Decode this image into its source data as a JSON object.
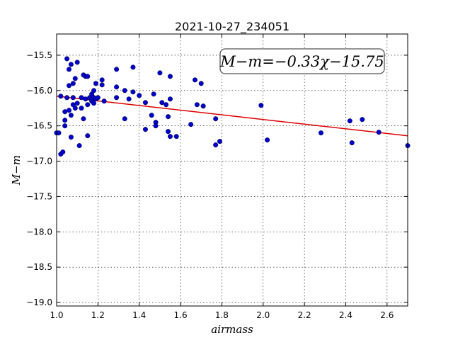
{
  "chart_data": {
    "type": "scatter",
    "title": "2021-10-27_234051",
    "xlabel": "airmass",
    "ylabel": "M−m",
    "xlim": [
      1.0,
      2.7
    ],
    "ylim": [
      -19.05,
      -15.2
    ],
    "x_ticks": [
      1.0,
      1.2,
      1.4,
      1.6,
      1.8,
      2.0,
      2.2,
      2.4,
      2.6
    ],
    "x_tick_labels": [
      "1.0",
      "1.2",
      "1.4",
      "1.6",
      "1.8",
      "2.0",
      "2.2",
      "2.4",
      "2.6"
    ],
    "y_ticks": [
      -15.5,
      -16.0,
      -16.5,
      -17.0,
      -17.5,
      -18.0,
      -18.5,
      -19.0
    ],
    "y_tick_labels": [
      "−15.5",
      "−16.0",
      "−16.5",
      "−17.0",
      "−17.5",
      "−18.0",
      "−18.5",
      "−19.0"
    ],
    "grid": true,
    "annotation": "M−m=−0.33χ−15.75",
    "fit_line": {
      "slope": -0.33,
      "intercept": -15.75,
      "color": "#dd0000"
    },
    "marker_color": "#0000cc",
    "points": [
      {
        "x": 1.0,
        "y": -16.6
      },
      {
        "x": 1.01,
        "y": -16.6
      },
      {
        "x": 1.02,
        "y": -16.08
      },
      {
        "x": 1.02,
        "y": -16.9
      },
      {
        "x": 1.03,
        "y": -16.87
      },
      {
        "x": 1.04,
        "y": -16.3
      },
      {
        "x": 1.04,
        "y": -16.42
      },
      {
        "x": 1.04,
        "y": -16.5
      },
      {
        "x": 1.05,
        "y": -15.55
      },
      {
        "x": 1.05,
        "y": -16.1
      },
      {
        "x": 1.06,
        "y": -15.7
      },
      {
        "x": 1.06,
        "y": -15.93
      },
      {
        "x": 1.06,
        "y": -16.28
      },
      {
        "x": 1.07,
        "y": -15.63
      },
      {
        "x": 1.07,
        "y": -16.35
      },
      {
        "x": 1.08,
        "y": -16.2
      },
      {
        "x": 1.07,
        "y": -16.66
      },
      {
        "x": 1.08,
        "y": -15.9
      },
      {
        "x": 1.08,
        "y": -16.1
      },
      {
        "x": 1.09,
        "y": -15.83
      },
      {
        "x": 1.09,
        "y": -16.25
      },
      {
        "x": 1.1,
        "y": -15.6
      },
      {
        "x": 1.1,
        "y": -16.18
      },
      {
        "x": 1.11,
        "y": -16.78
      },
      {
        "x": 1.12,
        "y": -16.1
      },
      {
        "x": 1.12,
        "y": -16.25
      },
      {
        "x": 1.13,
        "y": -15.78
      },
      {
        "x": 1.13,
        "y": -16.4
      },
      {
        "x": 1.14,
        "y": -15.8
      },
      {
        "x": 1.14,
        "y": -16.12
      },
      {
        "x": 1.15,
        "y": -15.8
      },
      {
        "x": 1.15,
        "y": -16.2
      },
      {
        "x": 1.15,
        "y": -16.64
      },
      {
        "x": 1.16,
        "y": -16.1
      },
      {
        "x": 1.17,
        "y": -16.05
      },
      {
        "x": 1.17,
        "y": -16.15
      },
      {
        "x": 1.18,
        "y": -16.0
      },
      {
        "x": 1.18,
        "y": -16.1
      },
      {
        "x": 1.18,
        "y": -16.18
      },
      {
        "x": 1.19,
        "y": -15.9
      },
      {
        "x": 1.19,
        "y": -16.12
      },
      {
        "x": 1.2,
        "y": -16.1
      },
      {
        "x": 1.22,
        "y": -15.85
      },
      {
        "x": 1.22,
        "y": -15.92
      },
      {
        "x": 1.23,
        "y": -16.15
      },
      {
        "x": 1.29,
        "y": -15.7
      },
      {
        "x": 1.29,
        "y": -15.95
      },
      {
        "x": 1.29,
        "y": -16.1
      },
      {
        "x": 1.33,
        "y": -16.0
      },
      {
        "x": 1.33,
        "y": -16.4
      },
      {
        "x": 1.35,
        "y": -16.12
      },
      {
        "x": 1.37,
        "y": -15.67
      },
      {
        "x": 1.37,
        "y": -16.02
      },
      {
        "x": 1.4,
        "y": -16.07
      },
      {
        "x": 1.43,
        "y": -16.17
      },
      {
        "x": 1.43,
        "y": -16.55
      },
      {
        "x": 1.46,
        "y": -16.35
      },
      {
        "x": 1.47,
        "y": -16.05
      },
      {
        "x": 1.48,
        "y": -16.45
      },
      {
        "x": 1.48,
        "y": -16.5
      },
      {
        "x": 1.5,
        "y": -15.75
      },
      {
        "x": 1.51,
        "y": -16.17
      },
      {
        "x": 1.53,
        "y": -16.2
      },
      {
        "x": 1.54,
        "y": -16.37
      },
      {
        "x": 1.54,
        "y": -16.58
      },
      {
        "x": 1.55,
        "y": -15.8
      },
      {
        "x": 1.55,
        "y": -16.12
      },
      {
        "x": 1.55,
        "y": -16.65
      },
      {
        "x": 1.58,
        "y": -16.65
      },
      {
        "x": 1.65,
        "y": -16.48
      },
      {
        "x": 1.67,
        "y": -15.85
      },
      {
        "x": 1.68,
        "y": -16.2
      },
      {
        "x": 1.7,
        "y": -15.9
      },
      {
        "x": 1.71,
        "y": -16.22
      },
      {
        "x": 1.77,
        "y": -16.4
      },
      {
        "x": 1.77,
        "y": -16.77
      },
      {
        "x": 1.79,
        "y": -16.72
      },
      {
        "x": 1.99,
        "y": -16.21
      },
      {
        "x": 2.02,
        "y": -16.7
      },
      {
        "x": 2.28,
        "y": -16.6
      },
      {
        "x": 2.42,
        "y": -16.43
      },
      {
        "x": 2.43,
        "y": -16.74
      },
      {
        "x": 2.48,
        "y": -16.41
      },
      {
        "x": 2.56,
        "y": -16.59
      },
      {
        "x": 2.7,
        "y": -16.78
      }
    ]
  }
}
